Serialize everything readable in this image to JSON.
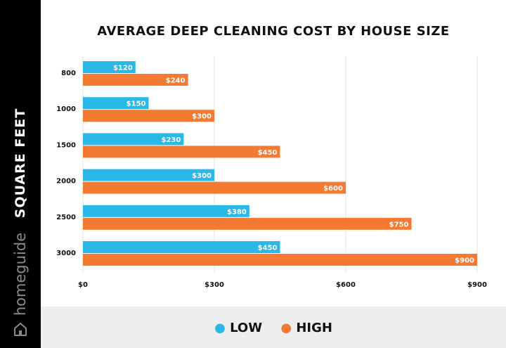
{
  "brand": {
    "name": "homeguide"
  },
  "colors": {
    "low": "#29b8e8",
    "high": "#f37a32",
    "sidebar": "#000000",
    "legend_band": "#eeeeee"
  },
  "chart_data": {
    "type": "bar",
    "orientation": "horizontal",
    "title": "AVERAGE DEEP CLEANING COST BY HOUSE SIZE",
    "ylabel": "SQUARE FEET",
    "xlabel": "",
    "categories": [
      "800",
      "1000",
      "1500",
      "2000",
      "2500",
      "3000"
    ],
    "series": [
      {
        "name": "LOW",
        "values": [
          120,
          150,
          230,
          300,
          380,
          450
        ],
        "labels": [
          "$120",
          "$150",
          "$230",
          "$300",
          "$380",
          "$450"
        ]
      },
      {
        "name": "HIGH",
        "values": [
          240,
          300,
          450,
          600,
          750,
          900
        ],
        "labels": [
          "$240",
          "$300",
          "$450",
          "$600",
          "$750",
          "$900"
        ]
      }
    ],
    "xlim": [
      0,
      900
    ],
    "xticks": [
      0,
      300,
      600,
      900
    ],
    "xtick_labels": [
      "$0",
      "$300",
      "$600",
      "$900"
    ],
    "grid": true,
    "legend_position": "bottom"
  }
}
